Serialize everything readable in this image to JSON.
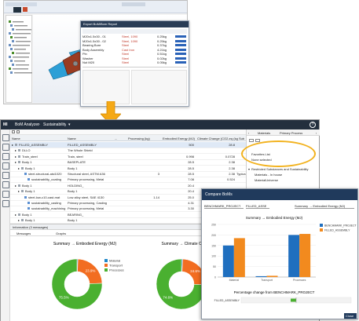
{
  "cad": {
    "title": "",
    "bom_window_title": "Export BoM/Bom Report",
    "bom_rows": [
      {
        "a": "M20x1.5x30 - 01",
        "b": "Steel, 1090",
        "c": "0.25kg"
      },
      {
        "a": "M20x1.5x30 - 02",
        "b": "Steel, 1090",
        "c": "0.25kg"
      },
      {
        "a": "Bearing Bore",
        "b": "Steel",
        "c": "0.37kg"
      },
      {
        "a": "Body Assembly",
        "b": "Cast Iron",
        "c": "4.21kg"
      },
      {
        "a": "Pin",
        "b": "Steel",
        "c": "0.51kg"
      },
      {
        "a": "Washer",
        "b": "Steel",
        "c": "0.02kg"
      },
      {
        "a": "Nut M20",
        "b": "Steel",
        "c": "0.05kg"
      }
    ]
  },
  "app": {
    "logo": "MI",
    "breadcrumb": [
      "BoM Analyzer",
      "Sustainability"
    ],
    "help": "?",
    "grid": {
      "headers": [
        "Name",
        "Name",
        "...",
        "Processing (kg)",
        "Embodied Energy (MJ)",
        "Climate Change (CO2-eq (kg))",
        "Sub"
      ],
      "rows": [
        {
          "indent": 0,
          "name": "FILLED_ASSEMBLY",
          "name2": "FILLED_ASSEMBLY",
          "pk": "",
          "ee": "500",
          "cc": "28.8",
          "sub": ""
        },
        {
          "indent": 1,
          "name": "DLLO",
          "name2": "The Whole Shield",
          "pk": "",
          "ee": "",
          "cc": "",
          "sub": ""
        },
        {
          "indent": 1,
          "name": "Train_steel",
          "name2": "Train, steel",
          "pk": "",
          "ee": "0.998",
          "cc": "0.0728",
          "sub": ""
        },
        {
          "indent": 1,
          "name": "Body 1",
          "name2": "BASEPLATE",
          "pk": "",
          "ee": "28.5",
          "cc": "2.38",
          "sub": ""
        },
        {
          "indent": 2,
          "name": "Body 1",
          "name2": "Body 1",
          "pk": "",
          "ee": "28.5",
          "cc": "2.38",
          "sub": ""
        },
        {
          "indent": 3,
          "name": "steel-structural-aisi1020",
          "name2": "Structural steel, ASTM A36",
          "pk": "3",
          "ee": "28.5",
          "cc": "2.38",
          "sub": "Typica"
        },
        {
          "indent": 4,
          "name": "sustainability_coating",
          "name2": "Primary processing, Metal",
          "pk": "",
          "ee": "7.08",
          "cc": "0.524",
          "sub": ""
        },
        {
          "indent": 1,
          "name": "Body 1",
          "name2": "HOLDING_",
          "pk": "",
          "ee": "20.4",
          "cc": "",
          "sub": ""
        },
        {
          "indent": 2,
          "name": "Body 1",
          "name2": "Body 1",
          "pk": "",
          "ee": "20.4",
          "cc": "",
          "sub": ""
        },
        {
          "indent": 3,
          "name": "steel-low-c10-cast-mat",
          "name2": "Low alloy steel, SAE 4130",
          "pk": "1.14",
          "ee": "25.0",
          "cc": "",
          "sub": "Typica"
        },
        {
          "indent": 4,
          "name": "sustainability_casting",
          "name2": "Primary processing, Casting",
          "pk": "",
          "ee": "4.31",
          "cc": "",
          "sub": ""
        },
        {
          "indent": 4,
          "name": "sustainability_machining",
          "name2": "Primary processing, Metal",
          "pk": "",
          "ee": "3.30",
          "cc": "",
          "sub": ""
        },
        {
          "indent": 1,
          "name": "Body 1",
          "name2": "BEARING_",
          "pk": "",
          "ee": "",
          "cc": "",
          "sub": ""
        },
        {
          "indent": 2,
          "name": "Body 1",
          "name2": "Body 1",
          "pk": "",
          "ee": "",
          "cc": "",
          "sub": ""
        }
      ]
    },
    "side": {
      "tabs": [
        "Materials",
        "Primary Process"
      ],
      "favorites": "Favorites List",
      "none_selected": "None selected",
      "section": "Restricted Substances and Sustainability",
      "items": [
        "Materials - In house",
        "MaterialUniverse"
      ]
    },
    "info": {
      "title": "Information (3 messages)",
      "tabs": [
        "Messages",
        "Graphs"
      ]
    }
  },
  "charts": {
    "legend_labels": [
      "Material",
      "Transport",
      "Processes"
    ],
    "colors": {
      "material": "#1f88c9",
      "transport": "#f26d21",
      "processes": "#4ab030"
    }
  },
  "chart_data": [
    {
      "type": "pie",
      "title": "Summary → Embodied Energy (MJ)",
      "categories": [
        "Material",
        "Transport",
        "Processes"
      ],
      "values": [
        0.6,
        23.9,
        75.5
      ],
      "labels": [
        "",
        "23.9%",
        "75.5%"
      ]
    },
    {
      "type": "pie",
      "title": "Summary → Climate Change (kg)",
      "categories": [
        "Material",
        "Transport",
        "Processes"
      ],
      "values": [
        0.8,
        24.6,
        74.6
      ],
      "labels": [
        "",
        "24.6%",
        "74.6%"
      ]
    },
    {
      "type": "bar",
      "title": "Summary → Embodied Energy (MJ)",
      "categories": [
        "Material",
        "Transport",
        "Processes"
      ],
      "series": [
        {
          "name": "BENCHMARK_PROJECT",
          "values": [
            150,
            4,
            200
          ]
        },
        {
          "name": "FILLED_ASSEMBLY",
          "values": [
            185,
            6,
            205
          ]
        }
      ],
      "ylim": [
        0,
        250
      ],
      "yticks": [
        "0",
        "50",
        "100",
        "150",
        "200",
        "250"
      ]
    },
    {
      "type": "bar",
      "title": "Percentage change from BENCHMARK_PROJECT",
      "categories": [
        "FILLED_ASSEMBLY"
      ],
      "values": [
        -10
      ],
      "xlim": [
        -100,
        100
      ]
    }
  ],
  "compare": {
    "title": "Compare BoMs",
    "sel_label": "BENCHMARK_PROJECT",
    "sel2_label": "FILLED_ASSE",
    "metric_label": "Summary → Embodied Energy (MJ)",
    "close": "Close"
  }
}
